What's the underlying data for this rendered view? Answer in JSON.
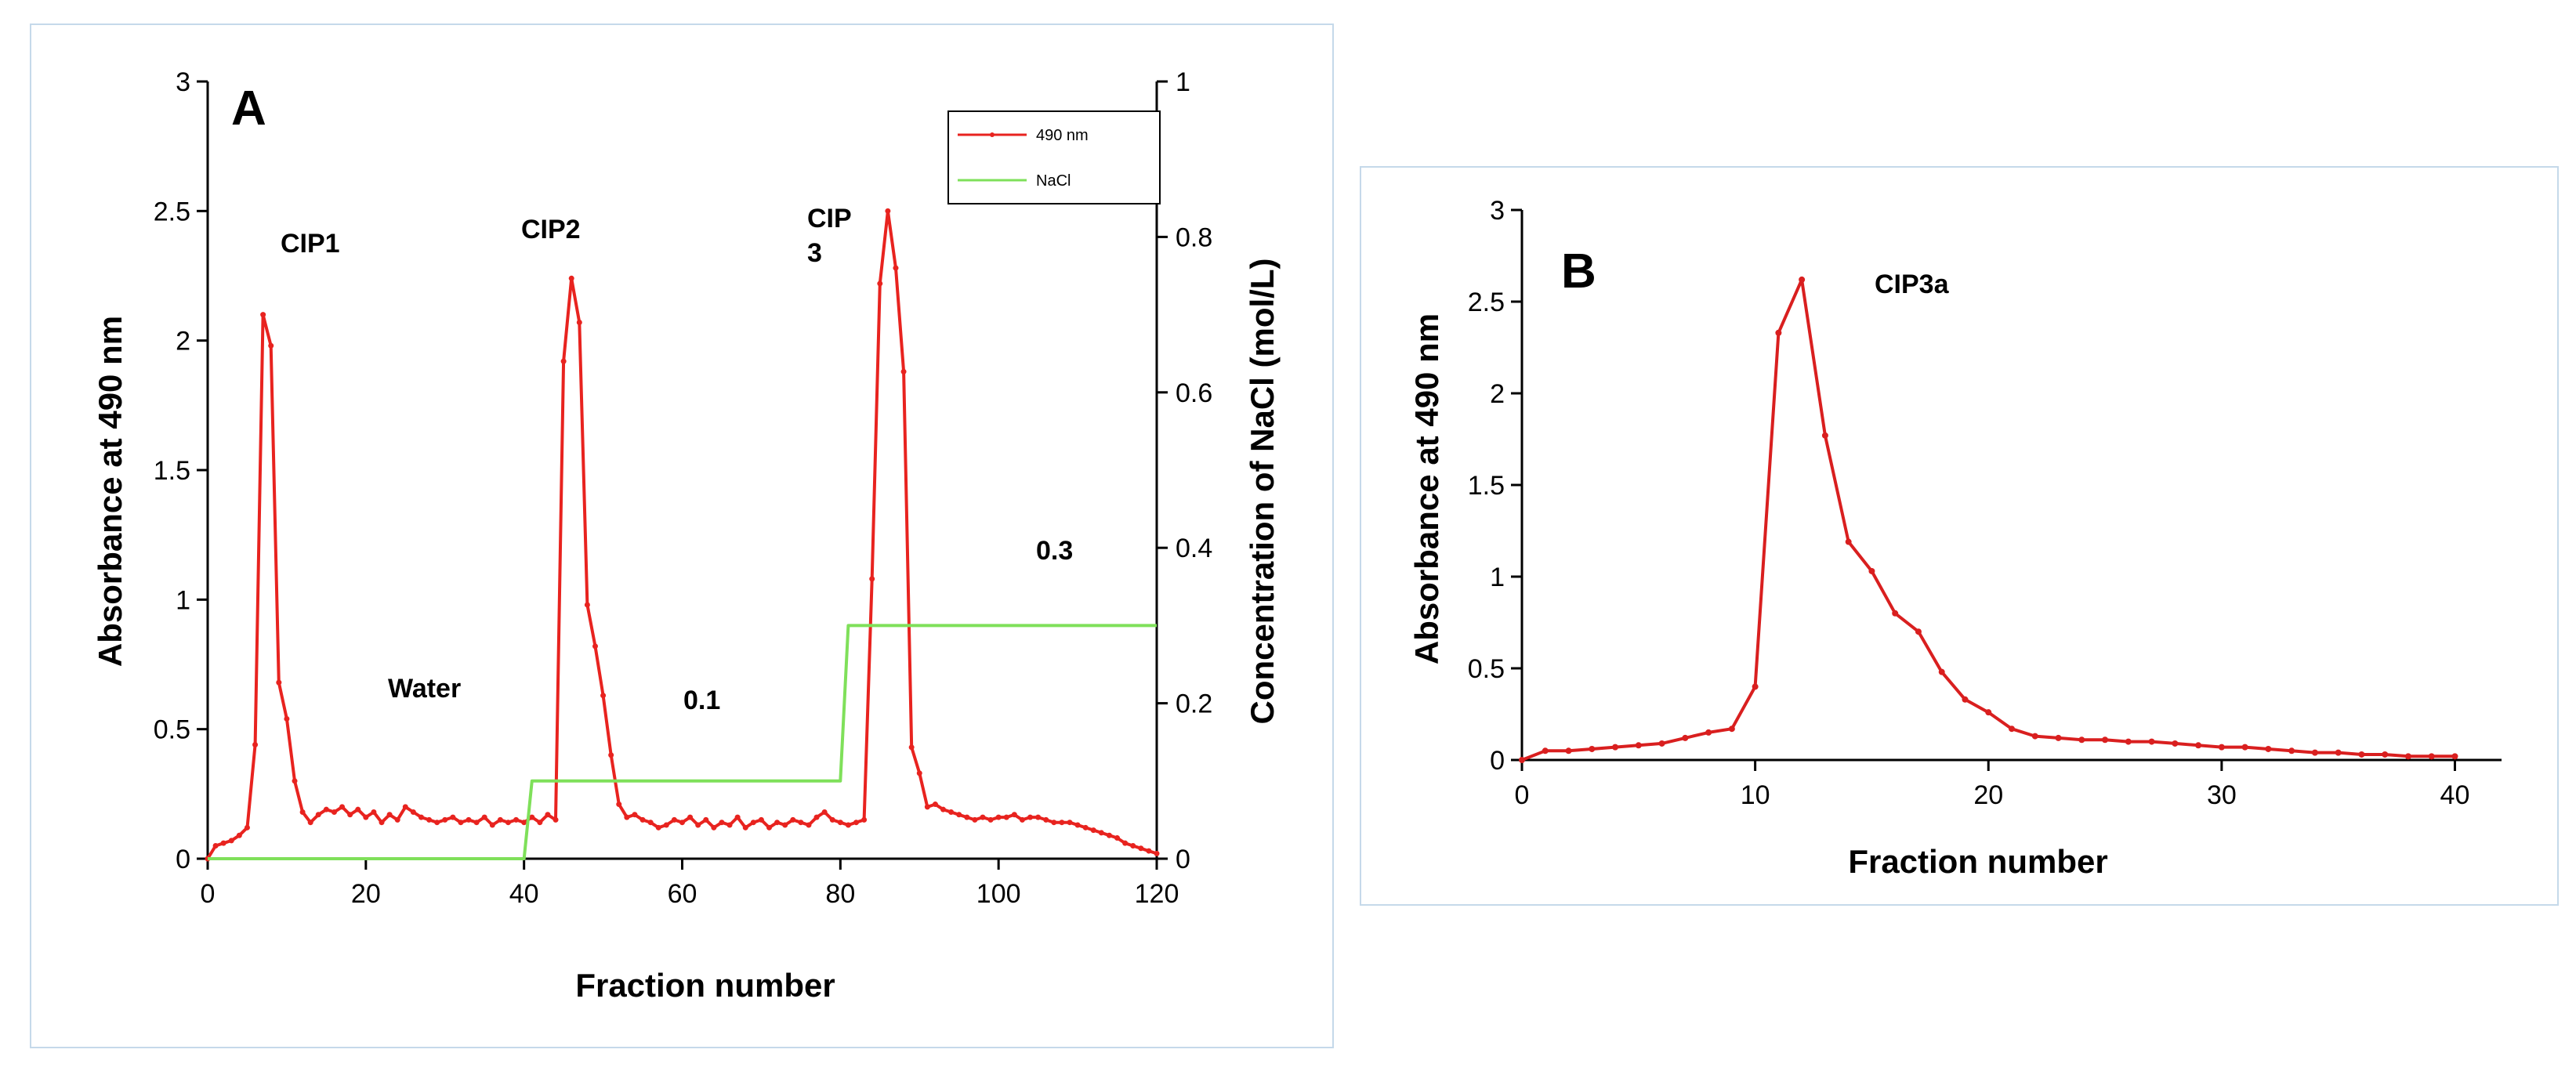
{
  "chart_data": [
    {
      "type": "line",
      "panel_label": "A",
      "xlabel": "Fraction number",
      "ylabel": "Absorbance at 490 nm",
      "y2label": "Concentration of NaCl (mol/L)",
      "xlim": [
        0,
        120
      ],
      "ylim": [
        0,
        3
      ],
      "y2lim": [
        0,
        1
      ],
      "xticks": [
        "0",
        "20",
        "40",
        "60",
        "80",
        "100",
        "120"
      ],
      "yticks": [
        "0",
        "0.5",
        "1",
        "1.5",
        "2",
        "2.5",
        "3"
      ],
      "y2ticks": [
        "0",
        "0.2",
        "0.4",
        "0.6",
        "0.8",
        "1"
      ],
      "legend_position": "top-right",
      "legend": [
        "490 nm",
        "NaCl"
      ],
      "series": [
        {
          "name": "490 nm",
          "color": "#e8231f",
          "axis": "left",
          "x": [
            0,
            1,
            2,
            3,
            4,
            5,
            6,
            7,
            8,
            9,
            10,
            11,
            12,
            13,
            14,
            15,
            16,
            17,
            18,
            19,
            20,
            21,
            22,
            23,
            24,
            25,
            26,
            27,
            28,
            29,
            30,
            31,
            32,
            33,
            34,
            35,
            36,
            37,
            38,
            39,
            40,
            41,
            42,
            43,
            44,
            45,
            46,
            47,
            48,
            49,
            50,
            51,
            52,
            53,
            54,
            55,
            56,
            57,
            58,
            59,
            60,
            61,
            62,
            63,
            64,
            65,
            66,
            67,
            68,
            69,
            70,
            71,
            72,
            73,
            74,
            75,
            76,
            77,
            78,
            79,
            80,
            81,
            82,
            83,
            84,
            85,
            86,
            87,
            88,
            89,
            90,
            91,
            92,
            93,
            94,
            95,
            96,
            97,
            98,
            99,
            100,
            101,
            102,
            103,
            104,
            105,
            106,
            107,
            108,
            109,
            110,
            111,
            112,
            113,
            114,
            115,
            116,
            117,
            118,
            119,
            120
          ],
          "values": [
            0,
            0.05,
            0.06,
            0.07,
            0.09,
            0.12,
            0.44,
            2.1,
            1.98,
            0.68,
            0.54,
            0.3,
            0.18,
            0.14,
            0.17,
            0.19,
            0.18,
            0.2,
            0.17,
            0.19,
            0.16,
            0.18,
            0.14,
            0.17,
            0.15,
            0.2,
            0.18,
            0.16,
            0.15,
            0.14,
            0.15,
            0.16,
            0.14,
            0.15,
            0.14,
            0.16,
            0.13,
            0.15,
            0.14,
            0.15,
            0.14,
            0.16,
            0.14,
            0.17,
            0.15,
            1.92,
            2.24,
            2.07,
            0.98,
            0.82,
            0.63,
            0.4,
            0.21,
            0.16,
            0.17,
            0.15,
            0.14,
            0.12,
            0.13,
            0.15,
            0.14,
            0.16,
            0.13,
            0.15,
            0.12,
            0.14,
            0.13,
            0.16,
            0.12,
            0.14,
            0.15,
            0.12,
            0.14,
            0.13,
            0.15,
            0.14,
            0.13,
            0.16,
            0.18,
            0.15,
            0.14,
            0.13,
            0.14,
            0.15,
            1.08,
            2.22,
            2.5,
            2.28,
            1.88,
            0.43,
            0.33,
            0.2,
            0.21,
            0.19,
            0.18,
            0.17,
            0.16,
            0.15,
            0.16,
            0.15,
            0.16,
            0.16,
            0.17,
            0.15,
            0.16,
            0.16,
            0.15,
            0.14,
            0.14,
            0.14,
            0.13,
            0.12,
            0.11,
            0.1,
            0.09,
            0.08,
            0.06,
            0.05,
            0.04,
            0.03,
            0.02
          ]
        },
        {
          "name": "NaCl",
          "color": "#7fe05a",
          "axis": "right",
          "x": [
            0,
            40,
            41,
            80,
            81,
            120
          ],
          "values": [
            0,
            0,
            0.1,
            0.1,
            0.3,
            0.3
          ]
        }
      ],
      "annotations": [
        "CIP1",
        "CIP2",
        "CIP",
        "3",
        "Water",
        "0.1",
        "0.3"
      ]
    },
    {
      "type": "line",
      "panel_label": "B",
      "xlabel": "Fraction number",
      "ylabel": "Absorbance at 490 nm",
      "xlim": [
        0,
        42
      ],
      "ylim": [
        0,
        3
      ],
      "xticks": [
        "0",
        "10",
        "20",
        "30",
        "40"
      ],
      "yticks": [
        "0",
        "0.5",
        "1",
        "1.5",
        "2",
        "2.5",
        "3"
      ],
      "series": [
        {
          "name": "CIP3a",
          "color": "#d91f1f",
          "x": [
            0,
            1,
            2,
            3,
            4,
            5,
            6,
            7,
            8,
            9,
            10,
            11,
            12,
            13,
            14,
            15,
            16,
            17,
            18,
            19,
            20,
            21,
            22,
            23,
            24,
            25,
            26,
            27,
            28,
            29,
            30,
            31,
            32,
            33,
            34,
            35,
            36,
            37,
            38,
            39,
            40
          ],
          "values": [
            0,
            0.05,
            0.05,
            0.06,
            0.07,
            0.08,
            0.09,
            0.12,
            0.15,
            0.17,
            0.4,
            2.33,
            2.62,
            1.77,
            1.19,
            1.03,
            0.8,
            0.7,
            0.48,
            0.33,
            0.26,
            0.17,
            0.13,
            0.12,
            0.11,
            0.11,
            0.1,
            0.1,
            0.09,
            0.08,
            0.07,
            0.07,
            0.06,
            0.05,
            0.04,
            0.04,
            0.03,
            0.03,
            0.02,
            0.02,
            0.02
          ]
        }
      ],
      "annotations": [
        "CIP3a"
      ]
    }
  ]
}
